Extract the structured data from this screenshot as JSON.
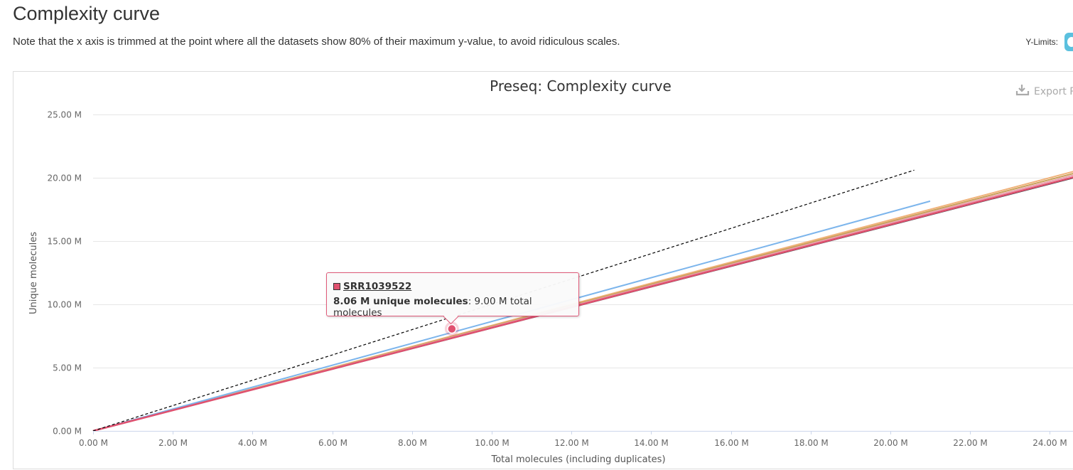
{
  "page": {
    "title": "Complexity curve",
    "note": "Note that the x axis is trimmed at the point where all the datasets show 80% of their maximum y-value, to avoid ridiculous scales.",
    "ylimits_label": "Y-Limits:"
  },
  "export_label": "Export P",
  "tooltip": {
    "sample": "SRR1039522",
    "value": "8.06 M unique molecules",
    "rest": ": 9.00 M total molecules"
  },
  "chart_data": {
    "type": "line",
    "title": "Preseq: Complexity curve",
    "xlabel": "Total molecules (including duplicates)",
    "ylabel": "Unique molecules",
    "xlim": [
      0,
      24.6
    ],
    "ylim": [
      0,
      25
    ],
    "x_unit": "M",
    "y_unit": "M",
    "x_ticks": [
      "0.00 M",
      "2.00 M",
      "4.00 M",
      "6.00 M",
      "8.00 M",
      "10.00 M",
      "12.00 M",
      "14.00 M",
      "16.00 M",
      "18.00 M",
      "20.00 M",
      "22.00 M",
      "24.00 M"
    ],
    "x_tick_values": [
      0,
      2,
      4,
      6,
      8,
      10,
      12,
      14,
      16,
      18,
      20,
      22,
      24
    ],
    "y_ticks": [
      "0.00 M",
      "5.00 M",
      "10.00 M",
      "15.00 M",
      "20.00 M",
      "25.00 M"
    ],
    "y_tick_values": [
      0,
      5,
      10,
      15,
      20,
      25
    ],
    "grid": true,
    "legend": "none",
    "series": [
      {
        "color": "#f0b27a",
        "dash": false,
        "x": [
          0,
          24.6
        ],
        "y": [
          0,
          20.5
        ]
      },
      {
        "color": "#c9a15a",
        "dash": false,
        "x": [
          0,
          24.6
        ],
        "y": [
          0,
          20.35
        ]
      },
      {
        "color": "#e8a0ae",
        "dash": false,
        "x": [
          0,
          24.6
        ],
        "y": [
          0,
          20.2
        ]
      },
      {
        "color": "#7cb5ec",
        "dash": false,
        "x": [
          0,
          21.0
        ],
        "y": [
          0,
          18.15
        ]
      },
      {
        "color": "#434348",
        "dash": false,
        "x": [
          0,
          24.6
        ],
        "y": [
          0,
          20.0
        ]
      },
      {
        "color": "#e0516f",
        "dash": false,
        "x": [
          0,
          24.6
        ],
        "y": [
          0,
          20.05
        ]
      },
      {
        "color": "#000000",
        "dash": true,
        "x": [
          0,
          20.6
        ],
        "y": [
          0,
          20.6
        ]
      }
    ],
    "highlight": {
      "x": 9.0,
      "y": 8.06,
      "color": "#e0516f"
    }
  }
}
